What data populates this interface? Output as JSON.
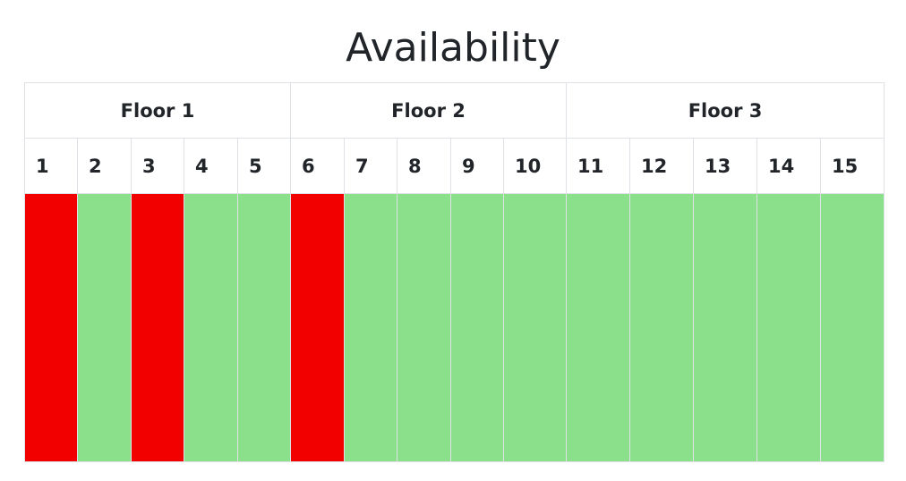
{
  "title": "Availability",
  "floors": [
    {
      "label": "Floor 1",
      "rooms": [
        "1",
        "2",
        "3",
        "4",
        "5"
      ]
    },
    {
      "label": "Floor 2",
      "rooms": [
        "6",
        "7",
        "8",
        "9",
        "10"
      ]
    },
    {
      "label": "Floor 3",
      "rooms": [
        "11",
        "12",
        "13",
        "14",
        "15"
      ]
    }
  ],
  "rooms": [
    {
      "number": "1",
      "status": "occupied"
    },
    {
      "number": "2",
      "status": "available"
    },
    {
      "number": "3",
      "status": "occupied"
    },
    {
      "number": "4",
      "status": "available"
    },
    {
      "number": "5",
      "status": "available"
    },
    {
      "number": "6",
      "status": "occupied"
    },
    {
      "number": "7",
      "status": "available"
    },
    {
      "number": "8",
      "status": "available"
    },
    {
      "number": "9",
      "status": "available"
    },
    {
      "number": "10",
      "status": "available"
    },
    {
      "number": "11",
      "status": "available"
    },
    {
      "number": "12",
      "status": "available"
    },
    {
      "number": "13",
      "status": "available"
    },
    {
      "number": "14",
      "status": "available"
    },
    {
      "number": "15",
      "status": "available"
    }
  ],
  "colors": {
    "occupied": "#f20000",
    "available": "#8be18b",
    "border": "#dee2e6",
    "text": "#212529"
  }
}
